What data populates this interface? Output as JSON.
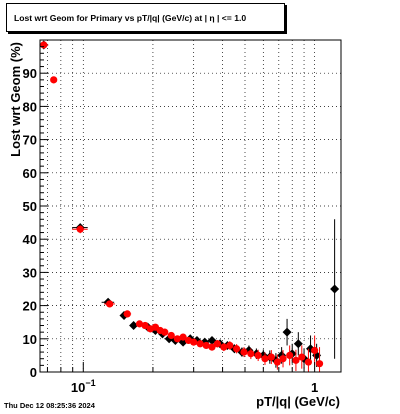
{
  "chart_data": {
    "type": "scatter",
    "title": "Lost wrt Geom for Primary vs pT/|q| (GeV/c) at |  η  | <= 1.0",
    "xlabel": "pT/|q| (GeV/c)",
    "ylabel": "Lost wrt Geom (%)",
    "x_scale": "log",
    "xlim": [
      0.065,
      1.3
    ],
    "ylim": [
      0,
      100
    ],
    "grid": true,
    "y_ticks": [
      {
        "value": 0,
        "label": "0"
      },
      {
        "value": 10,
        "label": "10"
      },
      {
        "value": 20,
        "label": "20"
      },
      {
        "value": 30,
        "label": "30"
      },
      {
        "value": 40,
        "label": "40"
      },
      {
        "value": 50,
        "label": "50"
      },
      {
        "value": 60,
        "label": "60"
      },
      {
        "value": 70,
        "label": "70"
      },
      {
        "value": 80,
        "label": "80"
      },
      {
        "value": 90,
        "label": "90"
      }
    ],
    "x_major_ticks": [
      {
        "value": 0.1,
        "base": "10",
        "exp": "−1"
      },
      {
        "value": 1,
        "base": "1",
        "exp": ""
      }
    ],
    "series": [
      {
        "color": "#000000",
        "marker": "diamond",
        "points": [
          {
            "x": 0.0675,
            "y": 98.5,
            "xerr": 0.003,
            "yerr": 0.5
          },
          {
            "x": 0.097,
            "y": 43.5,
            "xerr": 0.0075,
            "yerr": 1.2
          },
          {
            "x": 0.128,
            "y": 21.0,
            "xerr": 0.008,
            "yerr": 1.0
          },
          {
            "x": 0.15,
            "y": 17.0,
            "xerr": 0.006,
            "yerr": 1.0
          },
          {
            "x": 0.165,
            "y": 14.0,
            "xerr": 0.005,
            "yerr": 0.9
          },
          {
            "x": 0.19,
            "y": 13.5,
            "xerr": 0.004,
            "yerr": 0.9
          },
          {
            "x": 0.205,
            "y": 12.5,
            "xerr": 0.004,
            "yerr": 0.9
          },
          {
            "x": 0.22,
            "y": 11.5,
            "xerr": 0.004,
            "yerr": 0.9
          },
          {
            "x": 0.235,
            "y": 10.0,
            "xerr": 0.004,
            "yerr": 0.9
          },
          {
            "x": 0.25,
            "y": 9.5,
            "xerr": 0.004,
            "yerr": 0.9
          },
          {
            "x": 0.27,
            "y": 9.0,
            "xerr": 0.004,
            "yerr": 0.9
          },
          {
            "x": 0.29,
            "y": 10.0,
            "xerr": 0.004,
            "yerr": 1.0
          },
          {
            "x": 0.31,
            "y": 9.5,
            "xerr": 0.005,
            "yerr": 1.0
          },
          {
            "x": 0.335,
            "y": 9.0,
            "xerr": 0.005,
            "yerr": 1.0
          },
          {
            "x": 0.36,
            "y": 9.5,
            "xerr": 0.005,
            "yerr": 1.0
          },
          {
            "x": 0.39,
            "y": 8.5,
            "xerr": 0.006,
            "yerr": 1.1
          },
          {
            "x": 0.42,
            "y": 8.0,
            "xerr": 0.006,
            "yerr": 1.2
          },
          {
            "x": 0.45,
            "y": 7.0,
            "xerr": 0.007,
            "yerr": 1.3
          },
          {
            "x": 0.485,
            "y": 6.0,
            "xerr": 0.007,
            "yerr": 1.4
          },
          {
            "x": 0.52,
            "y": 6.5,
            "xerr": 0.008,
            "yerr": 1.5
          },
          {
            "x": 0.56,
            "y": 5.5,
            "xerr": 0.008,
            "yerr": 1.6
          },
          {
            "x": 0.6,
            "y": 5.0,
            "xerr": 0.009,
            "yerr": 1.8
          },
          {
            "x": 0.64,
            "y": 4.5,
            "xerr": 0.009,
            "yerr": 2.0
          },
          {
            "x": 0.68,
            "y": 3.5,
            "xerr": 0.01,
            "yerr": 2.2
          },
          {
            "x": 0.72,
            "y": 5.0,
            "xerr": 0.01,
            "yerr": 2.5
          },
          {
            "x": 0.76,
            "y": 12.0,
            "xerr": 0.01,
            "yerr": 4.0
          },
          {
            "x": 0.8,
            "y": 5.5,
            "xerr": 0.01,
            "yerr": 3.0
          },
          {
            "x": 0.85,
            "y": 8.5,
            "xerr": 0.012,
            "yerr": 3.5
          },
          {
            "x": 0.9,
            "y": 4.0,
            "xerr": 0.012,
            "yerr": 3.0
          },
          {
            "x": 0.96,
            "y": 7.0,
            "xerr": 0.015,
            "yerr": 4.0
          },
          {
            "x": 1.02,
            "y": 5.0,
            "xerr": 0.015,
            "yerr": 3.5
          },
          {
            "x": 1.22,
            "y": 25.0,
            "xerr": 0.0,
            "yerr": 21.0
          }
        ]
      },
      {
        "color": "#ff0000",
        "marker": "circle",
        "points": [
          {
            "x": 0.0675,
            "y": 98.5,
            "xerr": 0.003,
            "yerr": 0.5
          },
          {
            "x": 0.0745,
            "y": 88.0,
            "xerr": 0.002,
            "yerr": 0.8
          },
          {
            "x": 0.097,
            "y": 43.0,
            "xerr": 0.0075,
            "yerr": 1.2
          },
          {
            "x": 0.13,
            "y": 20.5,
            "xerr": 0.007,
            "yerr": 1.0
          },
          {
            "x": 0.155,
            "y": 17.5,
            "xerr": 0.006,
            "yerr": 1.0
          },
          {
            "x": 0.175,
            "y": 14.5,
            "xerr": 0.005,
            "yerr": 0.9
          },
          {
            "x": 0.185,
            "y": 14.0,
            "xerr": 0.004,
            "yerr": 0.9
          },
          {
            "x": 0.195,
            "y": 13.0,
            "xerr": 0.004,
            "yerr": 0.9
          },
          {
            "x": 0.205,
            "y": 13.5,
            "xerr": 0.004,
            "yerr": 0.9
          },
          {
            "x": 0.215,
            "y": 12.5,
            "xerr": 0.004,
            "yerr": 0.9
          },
          {
            "x": 0.225,
            "y": 12.0,
            "xerr": 0.004,
            "yerr": 0.9
          },
          {
            "x": 0.24,
            "y": 11.0,
            "xerr": 0.004,
            "yerr": 0.9
          },
          {
            "x": 0.255,
            "y": 10.0,
            "xerr": 0.004,
            "yerr": 0.9
          },
          {
            "x": 0.27,
            "y": 10.5,
            "xerr": 0.004,
            "yerr": 0.9
          },
          {
            "x": 0.285,
            "y": 9.5,
            "xerr": 0.004,
            "yerr": 1.0
          },
          {
            "x": 0.3,
            "y": 9.0,
            "xerr": 0.004,
            "yerr": 1.0
          },
          {
            "x": 0.32,
            "y": 8.5,
            "xerr": 0.005,
            "yerr": 1.0
          },
          {
            "x": 0.34,
            "y": 8.0,
            "xerr": 0.005,
            "yerr": 1.0
          },
          {
            "x": 0.36,
            "y": 7.5,
            "xerr": 0.005,
            "yerr": 1.0
          },
          {
            "x": 0.38,
            "y": 8.5,
            "xerr": 0.006,
            "yerr": 1.1
          },
          {
            "x": 0.405,
            "y": 7.5,
            "xerr": 0.006,
            "yerr": 1.2
          },
          {
            "x": 0.43,
            "y": 8.0,
            "xerr": 0.006,
            "yerr": 1.3
          },
          {
            "x": 0.46,
            "y": 7.0,
            "xerr": 0.007,
            "yerr": 1.4
          },
          {
            "x": 0.495,
            "y": 6.0,
            "xerr": 0.007,
            "yerr": 1.5
          },
          {
            "x": 0.53,
            "y": 5.5,
            "xerr": 0.008,
            "yerr": 1.6
          },
          {
            "x": 0.57,
            "y": 5.0,
            "xerr": 0.008,
            "yerr": 1.7
          },
          {
            "x": 0.61,
            "y": 4.0,
            "xerr": 0.009,
            "yerr": 1.9
          },
          {
            "x": 0.65,
            "y": 4.5,
            "xerr": 0.009,
            "yerr": 2.1
          },
          {
            "x": 0.69,
            "y": 3.0,
            "xerr": 0.01,
            "yerr": 2.3
          },
          {
            "x": 0.73,
            "y": 4.0,
            "xerr": 0.01,
            "yerr": 2.6
          },
          {
            "x": 0.78,
            "y": 5.0,
            "xerr": 0.01,
            "yerr": 3.0
          },
          {
            "x": 0.83,
            "y": 3.5,
            "xerr": 0.012,
            "yerr": 3.2
          },
          {
            "x": 0.88,
            "y": 4.5,
            "xerr": 0.012,
            "yerr": 3.5
          },
          {
            "x": 0.94,
            "y": 3.0,
            "xerr": 0.015,
            "yerr": 4.0
          },
          {
            "x": 1.0,
            "y": 6.5,
            "xerr": 0.015,
            "yerr": 4.5
          },
          {
            "x": 1.05,
            "y": 2.5,
            "xerr": 0.015,
            "yerr": 5.0
          }
        ]
      }
    ]
  },
  "footer": {
    "timestamp": "Thu Dec 12 08:25:36 2024"
  }
}
